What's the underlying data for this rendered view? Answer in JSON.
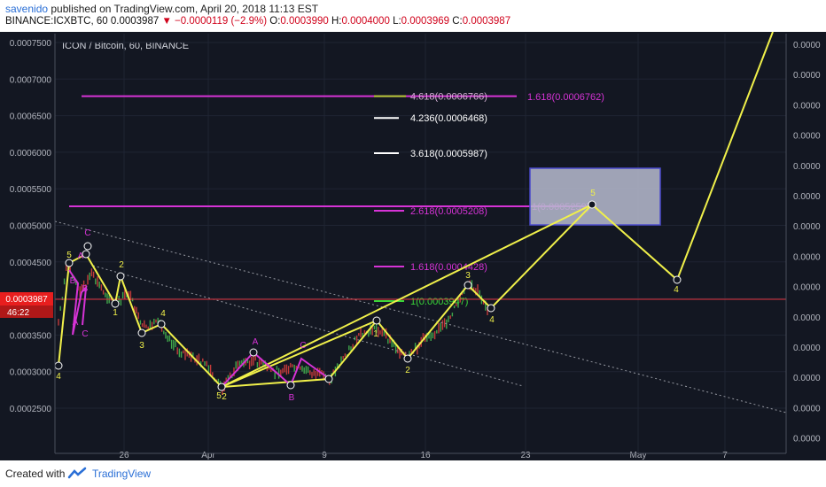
{
  "header": {
    "user": "savenido",
    "published_text": " published on TradingView.com, April 20, 2018 11:13 EST",
    "symbol_line": "BINANCE:ICXBTC, 60",
    "last": "0.0003987",
    "change": "−0.0000119 (−2.9%)",
    "o_label": "O:",
    "o_val": "0.0003990",
    "h_label": "H:",
    "h_val": "0.0004000",
    "l_label": "L:",
    "l_val": "0.0003969",
    "c_label": "C:",
    "c_val": "0.0003987"
  },
  "chart_data": {
    "type": "line",
    "title": "ICON / Bitcoin, 60, BINANCE",
    "ylim": [
      0.00022,
      0.00076
    ],
    "y_ticks": [
      "0.0007500",
      "0.0007000",
      "0.0006500",
      "0.0006000",
      "0.0005500",
      "0.0005000",
      "0.0004500",
      "0.0004000",
      "0.0003500",
      "0.0003000",
      "0.0002500"
    ],
    "right_ticks": [
      "0.0000",
      "0.0000",
      "0.0000",
      "0.0000",
      "0.0000",
      "0.0000",
      "0.0000",
      "0.0000",
      "0.0000",
      "0.0000",
      "0.0000",
      "0.0000",
      "0.0000",
      "0.0000"
    ],
    "x_ticks": [
      "26",
      "Apr",
      "9",
      "16",
      "23",
      "May",
      "7"
    ],
    "current_price": "0.0003987",
    "countdown": "46:22",
    "fib_levels": [
      {
        "label": "4.618(0.0006766)",
        "value": 0.0006766,
        "color": "#d4b0d4"
      },
      {
        "label": "1.618(0.0006762)",
        "value": 0.0006762,
        "color": "#d633d6"
      },
      {
        "label": "4.236(0.0006468)",
        "value": 0.0006468,
        "color": "#ffffff"
      },
      {
        "label": "3.618(0.0005987)",
        "value": 0.0005987,
        "color": "#ffffff"
      },
      {
        "label": "2.618(0.0005208)",
        "value": 0.0005208,
        "color": "#d633d6"
      },
      {
        "label": "1(0.0005259)",
        "value": 0.0005259,
        "color": "#d633d6"
      },
      {
        "label": "1.618(0.0004428)",
        "value": 0.0004428,
        "color": "#d633d6"
      },
      {
        "label": "1(0.0003947)",
        "value": 0.0003947,
        "color": "#39d639"
      }
    ],
    "wave_labels": [
      "4",
      "5",
      "1",
      "2",
      "3",
      "4",
      "5",
      "2",
      "A",
      "B",
      "C",
      "A",
      "B",
      "C",
      "1",
      "2",
      "3",
      "4",
      "5",
      "4",
      "3",
      "A",
      "C",
      "B"
    ],
    "target_box": {
      "x_start": "Apr 24",
      "x_end": "Apr 30",
      "y_low": 0.000501,
      "y_high": 0.000578
    }
  },
  "footer": {
    "created": "Created with",
    "brand": "TradingView"
  },
  "colors": {
    "background": "#131722",
    "wave": "#f0f04a",
    "magenta": "#d633d6",
    "red_line": "#e0323c",
    "price_box": "#e81e1e",
    "target_box_fill": "#b8bcd0",
    "target_box_stroke": "#4a4acc"
  }
}
